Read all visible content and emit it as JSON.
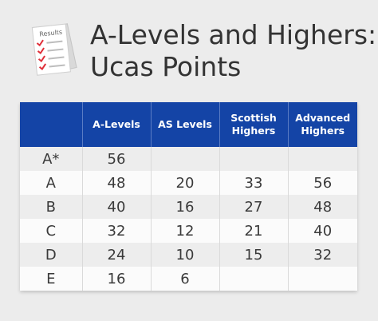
{
  "header": {
    "title_line1": "A-Levels and Highers:",
    "title_line2": "Ucas Points",
    "icon": "results-document-icon",
    "icon_label": "Results"
  },
  "colors": {
    "header_bg": "#1444a6",
    "check": "#e0303a",
    "text": "#333333"
  },
  "table": {
    "columns": [
      "",
      "A-Levels",
      "AS Levels",
      "Scottish Highers",
      "Advanced Highers"
    ],
    "rows": [
      [
        "A*",
        "56",
        "",
        "",
        ""
      ],
      [
        "A",
        "48",
        "20",
        "33",
        "56"
      ],
      [
        "B",
        "40",
        "16",
        "27",
        "48"
      ],
      [
        "C",
        "32",
        "12",
        "21",
        "40"
      ],
      [
        "D",
        "24",
        "10",
        "15",
        "32"
      ],
      [
        "E",
        "16",
        "6",
        "",
        ""
      ]
    ]
  }
}
